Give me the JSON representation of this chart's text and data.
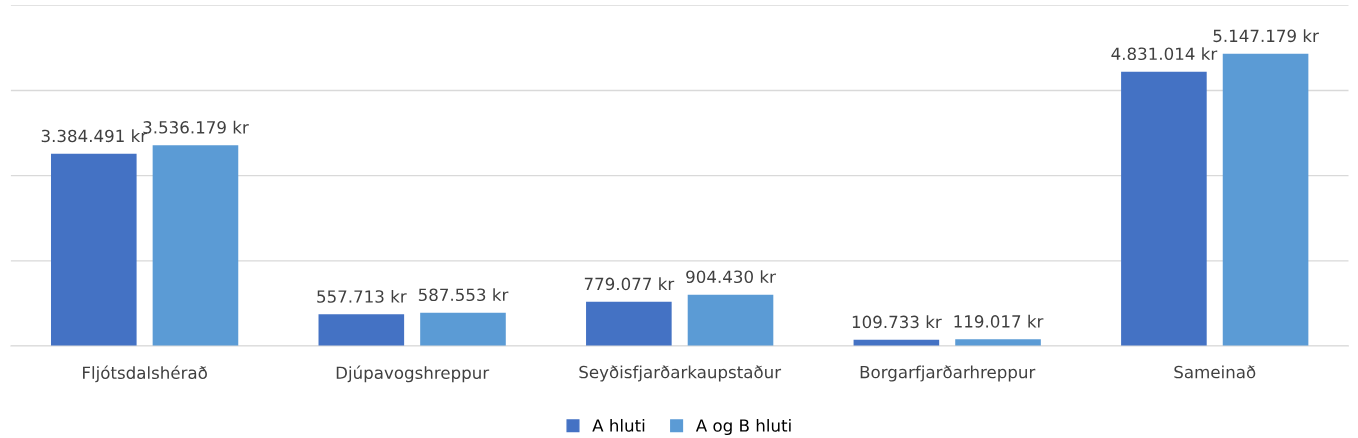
{
  "chart_data": {
    "type": "bar",
    "categories": [
      "Fljótsdalshérað",
      "Djúpavogshreppur",
      "Seyðisfjarðarkaupstaður",
      "Borgarfjarðarhreppur",
      "Sameinað"
    ],
    "series": [
      {
        "name": "A hluti",
        "color": "#4472c4",
        "values": [
          3384491,
          557713,
          779077,
          109733,
          4831014
        ],
        "value_labels": [
          "3.384.491 kr",
          "557.713 kr",
          "779.077 kr",
          "109.733 kr",
          "4.831.014 kr"
        ]
      },
      {
        "name": "A og B hluti",
        "color": "#5b9bd5",
        "values": [
          3536179,
          587553,
          904430,
          119017,
          5147179
        ],
        "value_labels": [
          "3.536.179 kr",
          "587.553 kr",
          "904.430 kr",
          "119.017 kr",
          "5.147.179 kr"
        ]
      }
    ],
    "ylim": [
      0,
      6000000
    ],
    "yticks": [
      {
        "value": 0,
        "label": null
      },
      {
        "value": 1500000,
        "label": null
      },
      {
        "value": 3000000,
        "label": null
      },
      {
        "value": 4500000,
        "label": null
      },
      {
        "value": 6000000,
        "label": null
      }
    ],
    "tick_labels": "x",
    "grid": "y",
    "legend": "bottom"
  }
}
